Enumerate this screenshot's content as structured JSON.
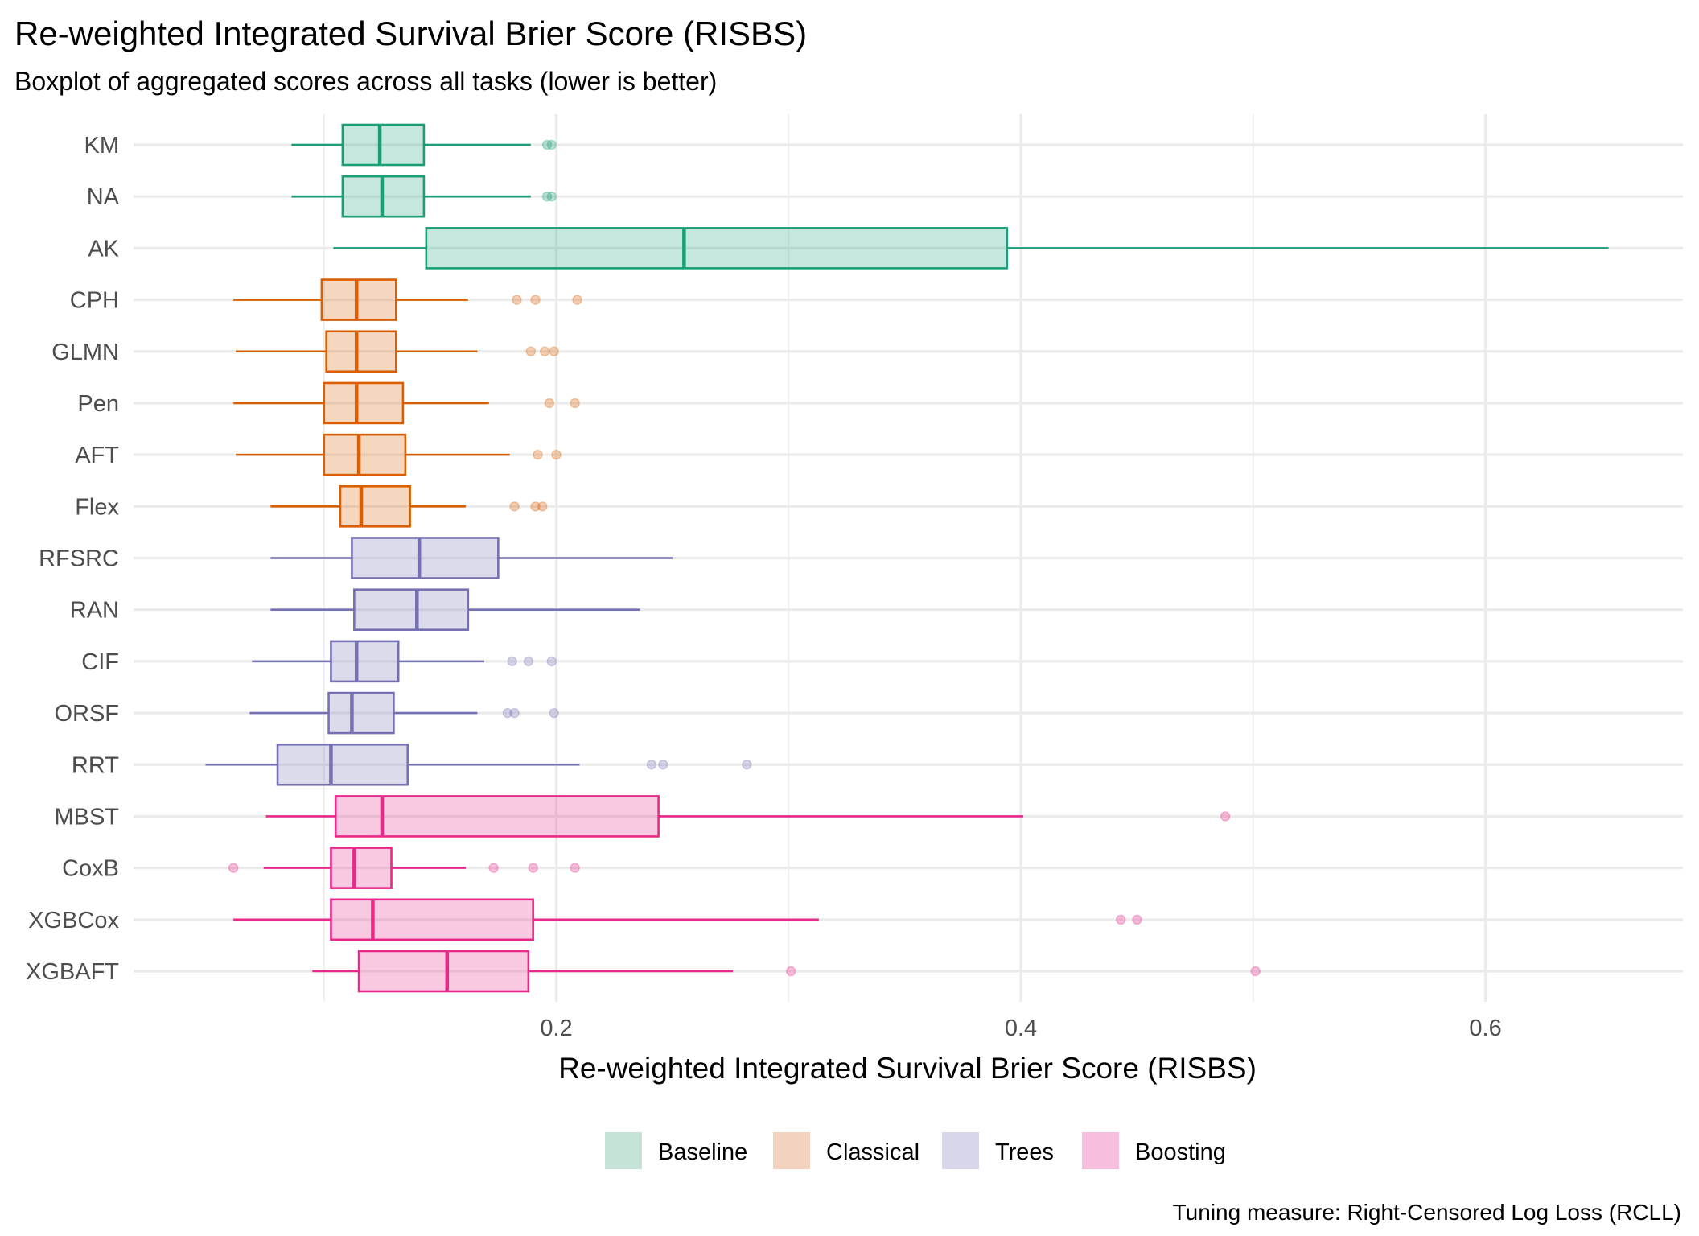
{
  "chart_data": {
    "type": "boxplot",
    "orientation": "horizontal",
    "title": "Re-weighted Integrated Survival Brier Score (RISBS)",
    "subtitle": "Boxplot of aggregated scores across all tasks (lower is better)",
    "xlabel": "Re-weighted Integrated Survival Brier Score (RISBS)",
    "ylabel": "",
    "caption": "Tuning measure: Right-Censored Log Loss (RCLL)",
    "xlim": [
      0.018,
      0.685
    ],
    "x_major_ticks": [
      0.2,
      0.4,
      0.6
    ],
    "x_tick_labels": [
      "0.2",
      "0.4",
      "0.6"
    ],
    "x_minor_ticks": [
      0.1,
      0.3,
      0.5
    ],
    "grid": true,
    "legend_position": "bottom",
    "groups": [
      {
        "name": "Baseline",
        "color": "#1B9E77",
        "fill": "#C6E3D8"
      },
      {
        "name": "Classical",
        "color": "#D95F02",
        "fill": "#F3D2C0"
      },
      {
        "name": "Trees",
        "color": "#7570B3",
        "fill": "#D8D7EA"
      },
      {
        "name": "Boosting",
        "color": "#E7298A",
        "fill": "#F7BEDD"
      }
    ],
    "categories": [
      "KM",
      "NA",
      "AK",
      "CPH",
      "GLMN",
      "Pen",
      "AFT",
      "Flex",
      "RFSRC",
      "RAN",
      "CIF",
      "ORSF",
      "RRT",
      "MBST",
      "CoxB",
      "XGBCox",
      "XGBAFT"
    ],
    "series": [
      {
        "name": "KM",
        "group": "Baseline",
        "whisker_low": 0.086,
        "q1": 0.108,
        "median": 0.124,
        "q3": 0.143,
        "whisker_high": 0.189,
        "outliers": [
          0.196,
          0.198
        ]
      },
      {
        "name": "NA",
        "group": "Baseline",
        "whisker_low": 0.086,
        "q1": 0.108,
        "median": 0.125,
        "q3": 0.143,
        "whisker_high": 0.189,
        "outliers": [
          0.196,
          0.198
        ]
      },
      {
        "name": "AK",
        "group": "Baseline",
        "whisker_low": 0.104,
        "q1": 0.144,
        "median": 0.255,
        "q3": 0.394,
        "whisker_high": 0.653,
        "outliers": []
      },
      {
        "name": "CPH",
        "group": "Classical",
        "whisker_low": 0.061,
        "q1": 0.099,
        "median": 0.114,
        "q3": 0.131,
        "whisker_high": 0.162,
        "outliers": [
          0.183,
          0.191,
          0.209
        ]
      },
      {
        "name": "GLMN",
        "group": "Classical",
        "whisker_low": 0.062,
        "q1": 0.101,
        "median": 0.114,
        "q3": 0.131,
        "whisker_high": 0.166,
        "outliers": [
          0.189,
          0.195,
          0.199
        ]
      },
      {
        "name": "Pen",
        "group": "Classical",
        "whisker_low": 0.061,
        "q1": 0.1,
        "median": 0.114,
        "q3": 0.134,
        "whisker_high": 0.171,
        "outliers": [
          0.197,
          0.208
        ]
      },
      {
        "name": "AFT",
        "group": "Classical",
        "whisker_low": 0.062,
        "q1": 0.1,
        "median": 0.115,
        "q3": 0.135,
        "whisker_high": 0.18,
        "outliers": [
          0.192,
          0.2
        ]
      },
      {
        "name": "Flex",
        "group": "Classical",
        "whisker_low": 0.077,
        "q1": 0.107,
        "median": 0.116,
        "q3": 0.137,
        "whisker_high": 0.161,
        "outliers": [
          0.182,
          0.191,
          0.194
        ]
      },
      {
        "name": "RFSRC",
        "group": "Trees",
        "whisker_low": 0.077,
        "q1": 0.112,
        "median": 0.141,
        "q3": 0.175,
        "whisker_high": 0.25,
        "outliers": []
      },
      {
        "name": "RAN",
        "group": "Trees",
        "whisker_low": 0.077,
        "q1": 0.113,
        "median": 0.14,
        "q3": 0.162,
        "whisker_high": 0.236,
        "outliers": []
      },
      {
        "name": "CIF",
        "group": "Trees",
        "whisker_low": 0.069,
        "q1": 0.103,
        "median": 0.114,
        "q3": 0.132,
        "whisker_high": 0.169,
        "outliers": [
          0.181,
          0.188,
          0.198
        ]
      },
      {
        "name": "ORSF",
        "group": "Trees",
        "whisker_low": 0.068,
        "q1": 0.102,
        "median": 0.112,
        "q3": 0.13,
        "whisker_high": 0.166,
        "outliers": [
          0.179,
          0.182,
          0.199
        ]
      },
      {
        "name": "RRT",
        "group": "Trees",
        "whisker_low": 0.049,
        "q1": 0.08,
        "median": 0.103,
        "q3": 0.136,
        "whisker_high": 0.21,
        "outliers": [
          0.241,
          0.246,
          0.282
        ]
      },
      {
        "name": "MBST",
        "group": "Boosting",
        "whisker_low": 0.075,
        "q1": 0.105,
        "median": 0.125,
        "q3": 0.244,
        "whisker_high": 0.401,
        "outliers": [
          0.488
        ]
      },
      {
        "name": "CoxB",
        "group": "Boosting",
        "whisker_low": 0.074,
        "q1": 0.103,
        "median": 0.113,
        "q3": 0.129,
        "whisker_high": 0.161,
        "outliers": [
          0.061,
          0.173,
          0.19,
          0.208
        ]
      },
      {
        "name": "XGBCox",
        "group": "Boosting",
        "whisker_low": 0.061,
        "q1": 0.103,
        "median": 0.121,
        "q3": 0.19,
        "whisker_high": 0.313,
        "outliers": [
          0.443,
          0.45
        ]
      },
      {
        "name": "XGBAFT",
        "group": "Boosting",
        "whisker_low": 0.095,
        "q1": 0.115,
        "median": 0.153,
        "q3": 0.188,
        "whisker_high": 0.276,
        "outliers": [
          0.301,
          0.501
        ]
      }
    ]
  }
}
